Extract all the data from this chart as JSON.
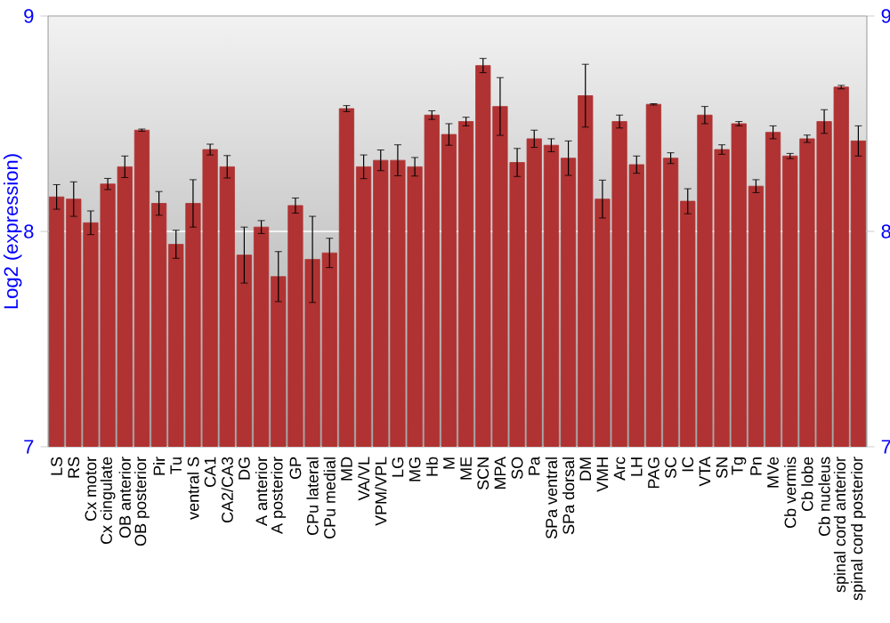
{
  "chart_data": {
    "type": "bar",
    "ylabel": "Log2 (expression)",
    "categories": [
      "LS",
      "RS",
      "Cx motor",
      "Cx cingulate",
      "OB anterior",
      "OB posterior",
      "Pir",
      "Tu",
      "ventral S",
      "CA1",
      "CA2/CA3",
      "DG",
      "A anterior",
      "A posterior",
      "GP",
      "CPu lateral",
      "CPu medial",
      "MD",
      "VA/VL",
      "VPM/VPL",
      "LG",
      "MG",
      "Hb",
      "M",
      "ME",
      "SCN",
      "MPA",
      "SO",
      "Pa",
      "SPa ventral",
      "SPa dorsal",
      "DM",
      "VMH",
      "Arc",
      "LH",
      "PAG",
      "SC",
      "IC",
      "VTA",
      "SN",
      "Tg",
      "Pn",
      "MVe",
      "Cb vermis",
      "Cb lobe",
      "Cb nucleus",
      "spinal cord anterior",
      "spinal cord posterior"
    ],
    "values": [
      8.16,
      8.15,
      8.04,
      8.22,
      8.3,
      8.47,
      8.13,
      7.94,
      8.13,
      8.38,
      8.3,
      7.89,
      8.02,
      7.79,
      8.12,
      7.87,
      7.9,
      8.57,
      8.3,
      8.33,
      8.33,
      8.3,
      8.54,
      8.45,
      8.51,
      8.77,
      8.58,
      8.32,
      8.43,
      8.4,
      8.34,
      8.63,
      8.15,
      8.51,
      8.31,
      8.59,
      8.34,
      8.14,
      8.54,
      8.38,
      8.5,
      8.21,
      8.46,
      8.35,
      8.43,
      8.51,
      8.67,
      8.42
    ],
    "errors": [
      0.057,
      0.08,
      0.055,
      0.026,
      0.05,
      0.005,
      0.055,
      0.065,
      0.11,
      0.025,
      0.052,
      0.13,
      0.03,
      0.116,
      0.035,
      0.2,
      0.068,
      0.014,
      0.055,
      0.048,
      0.072,
      0.043,
      0.02,
      0.05,
      0.02,
      0.033,
      0.134,
      0.065,
      0.04,
      0.03,
      0.08,
      0.146,
      0.088,
      0.03,
      0.04,
      0.003,
      0.025,
      0.058,
      0.04,
      0.022,
      0.01,
      0.03,
      0.03,
      0.012,
      0.017,
      0.055,
      0.008,
      0.07
    ],
    "color": "#b03232",
    "ylim": [
      7,
      9
    ],
    "yticks": [
      7,
      8,
      9
    ],
    "y2lim": [
      7,
      9
    ],
    "y2ticks": [
      7,
      8,
      9
    ],
    "grid": "y"
  }
}
